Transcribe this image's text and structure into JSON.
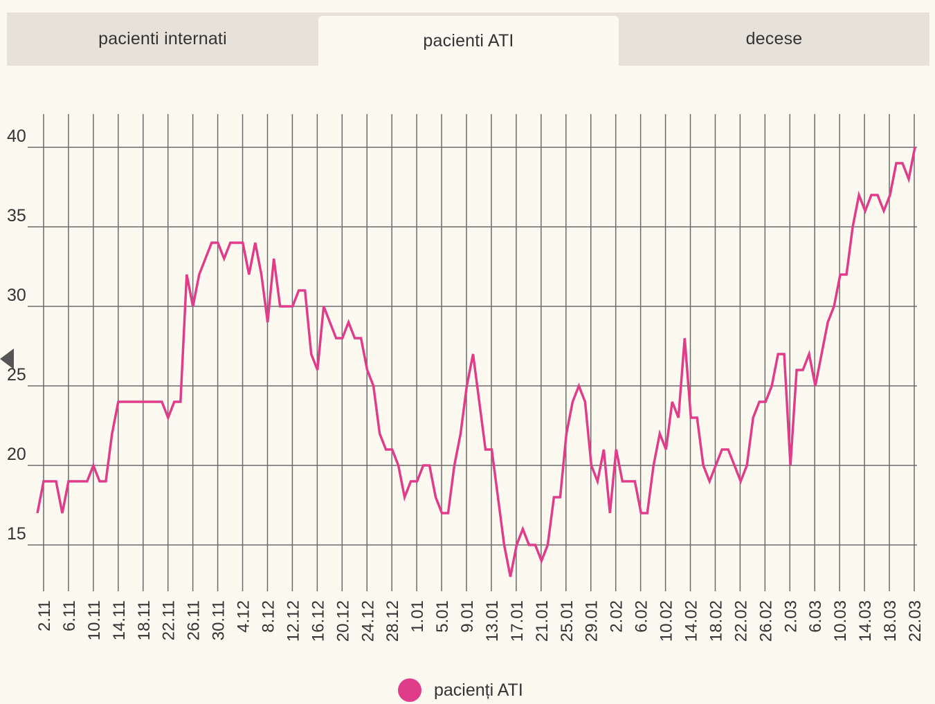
{
  "tabs": [
    {
      "label": "pacienti internati",
      "active": false
    },
    {
      "label": "pacienti ATI",
      "active": true
    },
    {
      "label": "decese",
      "active": false
    }
  ],
  "colors": {
    "series": "#e03c8a",
    "grid": "#6a6a6a",
    "background": "#fcf9f1"
  },
  "chart_data": {
    "type": "line",
    "y_ticks": [
      "15",
      "20",
      "25",
      "30",
      "35",
      "40"
    ],
    "ylim": [
      15,
      40
    ],
    "x_tick_labels": [
      "2.11",
      "6.11",
      "10.11",
      "14.11",
      "18.11",
      "22.11",
      "26.11",
      "30.11",
      "4.12",
      "8.12",
      "12.12",
      "16.12",
      "20.12",
      "24.12",
      "28.12",
      "1.01",
      "5.01",
      "9.01",
      "13.01",
      "17.01",
      "21.01",
      "25.01",
      "29.01",
      "2.02",
      "6.02",
      "10.02",
      "14.02",
      "18.02",
      "22.02",
      "26.02",
      "2.03",
      "6.03",
      "10.03",
      "14.03",
      "18.03",
      "22.03"
    ],
    "grid": true,
    "legend_position": "bottom",
    "series": [
      {
        "name": "pacienți ATI",
        "values": [
          17,
          19,
          19,
          19,
          17,
          19,
          19,
          19,
          19,
          20,
          19,
          19,
          22,
          24,
          24,
          24,
          24,
          24,
          24,
          24,
          24,
          23,
          24,
          24,
          32,
          30,
          32,
          33,
          34,
          34,
          33,
          34,
          34,
          34,
          32,
          34,
          32,
          29,
          33,
          30,
          30,
          30,
          31,
          31,
          27,
          26,
          30,
          29,
          28,
          28,
          29,
          28,
          28,
          26,
          25,
          22,
          21,
          21,
          20,
          18,
          19,
          19,
          20,
          20,
          18,
          17,
          17,
          20,
          22,
          25,
          27,
          24,
          21,
          21,
          18,
          15,
          13,
          15,
          16,
          15,
          15,
          14,
          15,
          18,
          18,
          22,
          24,
          25,
          24,
          20,
          19,
          21,
          17,
          21,
          19,
          19,
          19,
          17,
          17,
          20,
          22,
          21,
          24,
          23,
          28,
          23,
          23,
          20,
          19,
          20,
          21,
          21,
          20,
          19,
          20,
          23,
          24,
          24,
          25,
          27,
          27,
          20,
          26,
          26,
          27,
          25,
          27,
          29,
          30,
          32,
          32,
          35,
          37,
          36,
          37,
          37,
          36,
          37,
          39,
          39,
          38,
          40
        ]
      }
    ]
  },
  "legend": {
    "label": "pacienți ATI"
  }
}
